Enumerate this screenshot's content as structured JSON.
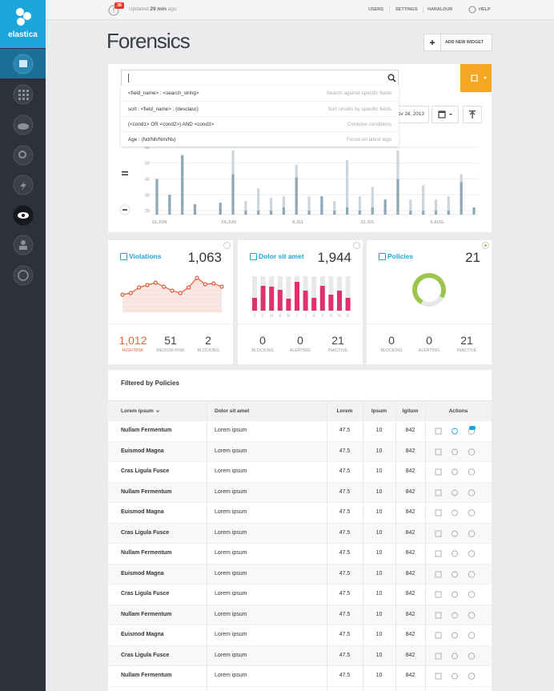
{
  "topbar": {
    "badge": "38",
    "updated_prefix": "Updated",
    "updated_time": "29 min",
    "updated_suffix": "ago",
    "nav": [
      "USERS",
      "SETTINGS",
      "HARALDUR"
    ],
    "help": "HELP"
  },
  "sidebar": {
    "logo": "elastica"
  },
  "page_title": "Forensics",
  "add_widget": "ADD NEW WIDGET",
  "search": {
    "suggestions": [
      {
        "syntax": "<field_name> : <search_string>",
        "hint": "Search against specific fields"
      },
      {
        "syntax": "sort : <field_name> : (desclasc)",
        "hint": "Sort results by specific fields"
      },
      {
        "syntax": "(<cond1> OR <cond2>) AND <cond3>",
        "hint": "Combine conditions"
      },
      {
        "syntax": "Age : (Nd/Nh/Nm/Ns)",
        "hint": "Focus on latest logs"
      }
    ]
  },
  "date": "ov 16, 2013",
  "histogram": {
    "type": "bar",
    "ylim": [
      17.5,
      65
    ],
    "yticks": [
      20,
      30,
      40,
      50,
      60
    ],
    "xlabels": [
      "10.JUN",
      "24.JUN",
      "8.JUL",
      "22.JUL",
      "5.AUG"
    ],
    "total": [
      40,
      30,
      55,
      24,
      null,
      25,
      58,
      26,
      34,
      28,
      29,
      49,
      29,
      29,
      26,
      52,
      29,
      35,
      27,
      58,
      27,
      36,
      27,
      29,
      43,
      22
    ],
    "dark": [
      40,
      30,
      55,
      24,
      null,
      25,
      43,
      20,
      20,
      20,
      22,
      41,
      20,
      29,
      20,
      22,
      20,
      22,
      27,
      40,
      20,
      20,
      20,
      20,
      38,
      22
    ],
    "colors": {
      "total": "#cbd5db",
      "dark": "#8ea8b6"
    }
  },
  "widgets": [
    {
      "title": "Violations",
      "total": "1,063",
      "chart": {
        "type": "line",
        "ylim": [
          0,
          45
        ],
        "color": "#e05a3a",
        "values": [
          22,
          24,
          31,
          34,
          37,
          32,
          27,
          24,
          31,
          43,
          35,
          36,
          32
        ]
      },
      "stats": [
        {
          "value": "1,012",
          "label": "HIGH RISK",
          "color": "#e8643a"
        },
        {
          "value": "51",
          "label": "MEDIUM RISK"
        },
        {
          "value": "2",
          "label": "BLOCKING"
        }
      ]
    },
    {
      "title": "Dolor sit amet",
      "total": "1,944",
      "chart": {
        "type": "bar",
        "ylim": [
          0,
          43
        ],
        "color": "#e0316a",
        "categories": [
          "J",
          "F",
          "M",
          "A",
          "M",
          "J",
          "J",
          "A",
          "S",
          "O",
          "N",
          "D"
        ],
        "values": [
          16,
          31,
          30,
          26,
          15,
          36,
          25,
          16,
          31,
          20,
          25,
          16
        ]
      },
      "stats": [
        {
          "value": "0",
          "label": "BLOCKING"
        },
        {
          "value": "0",
          "label": "ALERTING"
        },
        {
          "value": "21",
          "label": "INACTIVE"
        }
      ]
    },
    {
      "title": "Policies",
      "total": "21",
      "chart": {
        "type": "donut",
        "colors": [
          "#9cc54c",
          "#e4e6e8"
        ],
        "values": [
          75,
          25
        ]
      },
      "stats": [
        {
          "value": "0",
          "label": "BLOCKING"
        },
        {
          "value": "0",
          "label": "ALERTING"
        },
        {
          "value": "21",
          "label": "INACTIVE"
        }
      ]
    }
  ],
  "table": {
    "title": "Filtered by Policies",
    "columns": [
      "Lorem ipsum",
      "Dolor sit amet",
      "Lorem",
      "Ipsum",
      "Igitum",
      "Actions"
    ],
    "rows": [
      [
        "Nullam Fermentum",
        "Lorem ipsum",
        "47.5",
        "10",
        "842"
      ],
      [
        "Euismod Magna",
        "Lorem ipsum",
        "47.5",
        "10",
        "842"
      ],
      [
        "Cras Ligula Fusce",
        "Lorem ipsum",
        "47.5",
        "10",
        "842"
      ],
      [
        "Nullam Fermentum",
        "Lorem ipsum",
        "47.5",
        "10",
        "842"
      ],
      [
        "Euismod Magna",
        "Lorem ipsum",
        "47.5",
        "10",
        "842"
      ],
      [
        "Cras Ligula Fusce",
        "Lorem ipsum",
        "47.5",
        "10",
        "842"
      ],
      [
        "Nullam Fermentum",
        "Lorem ipsum",
        "47.5",
        "10",
        "842"
      ],
      [
        "Euismod Magna",
        "Lorem ipsum",
        "47.5",
        "10",
        "842"
      ],
      [
        "Cras Ligula Fusce",
        "Lorem ipsum",
        "47.5",
        "10",
        "842"
      ],
      [
        "Nullam Fermentum",
        "Lorem ipsum",
        "47.5",
        "10",
        "842"
      ],
      [
        "Euismod Magna",
        "Lorem ipsum",
        "47.5",
        "10",
        "842"
      ],
      [
        "Cras Ligula Fusce",
        "Lorem ipsum",
        "47.5",
        "10",
        "842"
      ],
      [
        "Nullam Fermentum",
        "Lorem ipsum",
        "47.5",
        "10",
        "842"
      ]
    ]
  }
}
